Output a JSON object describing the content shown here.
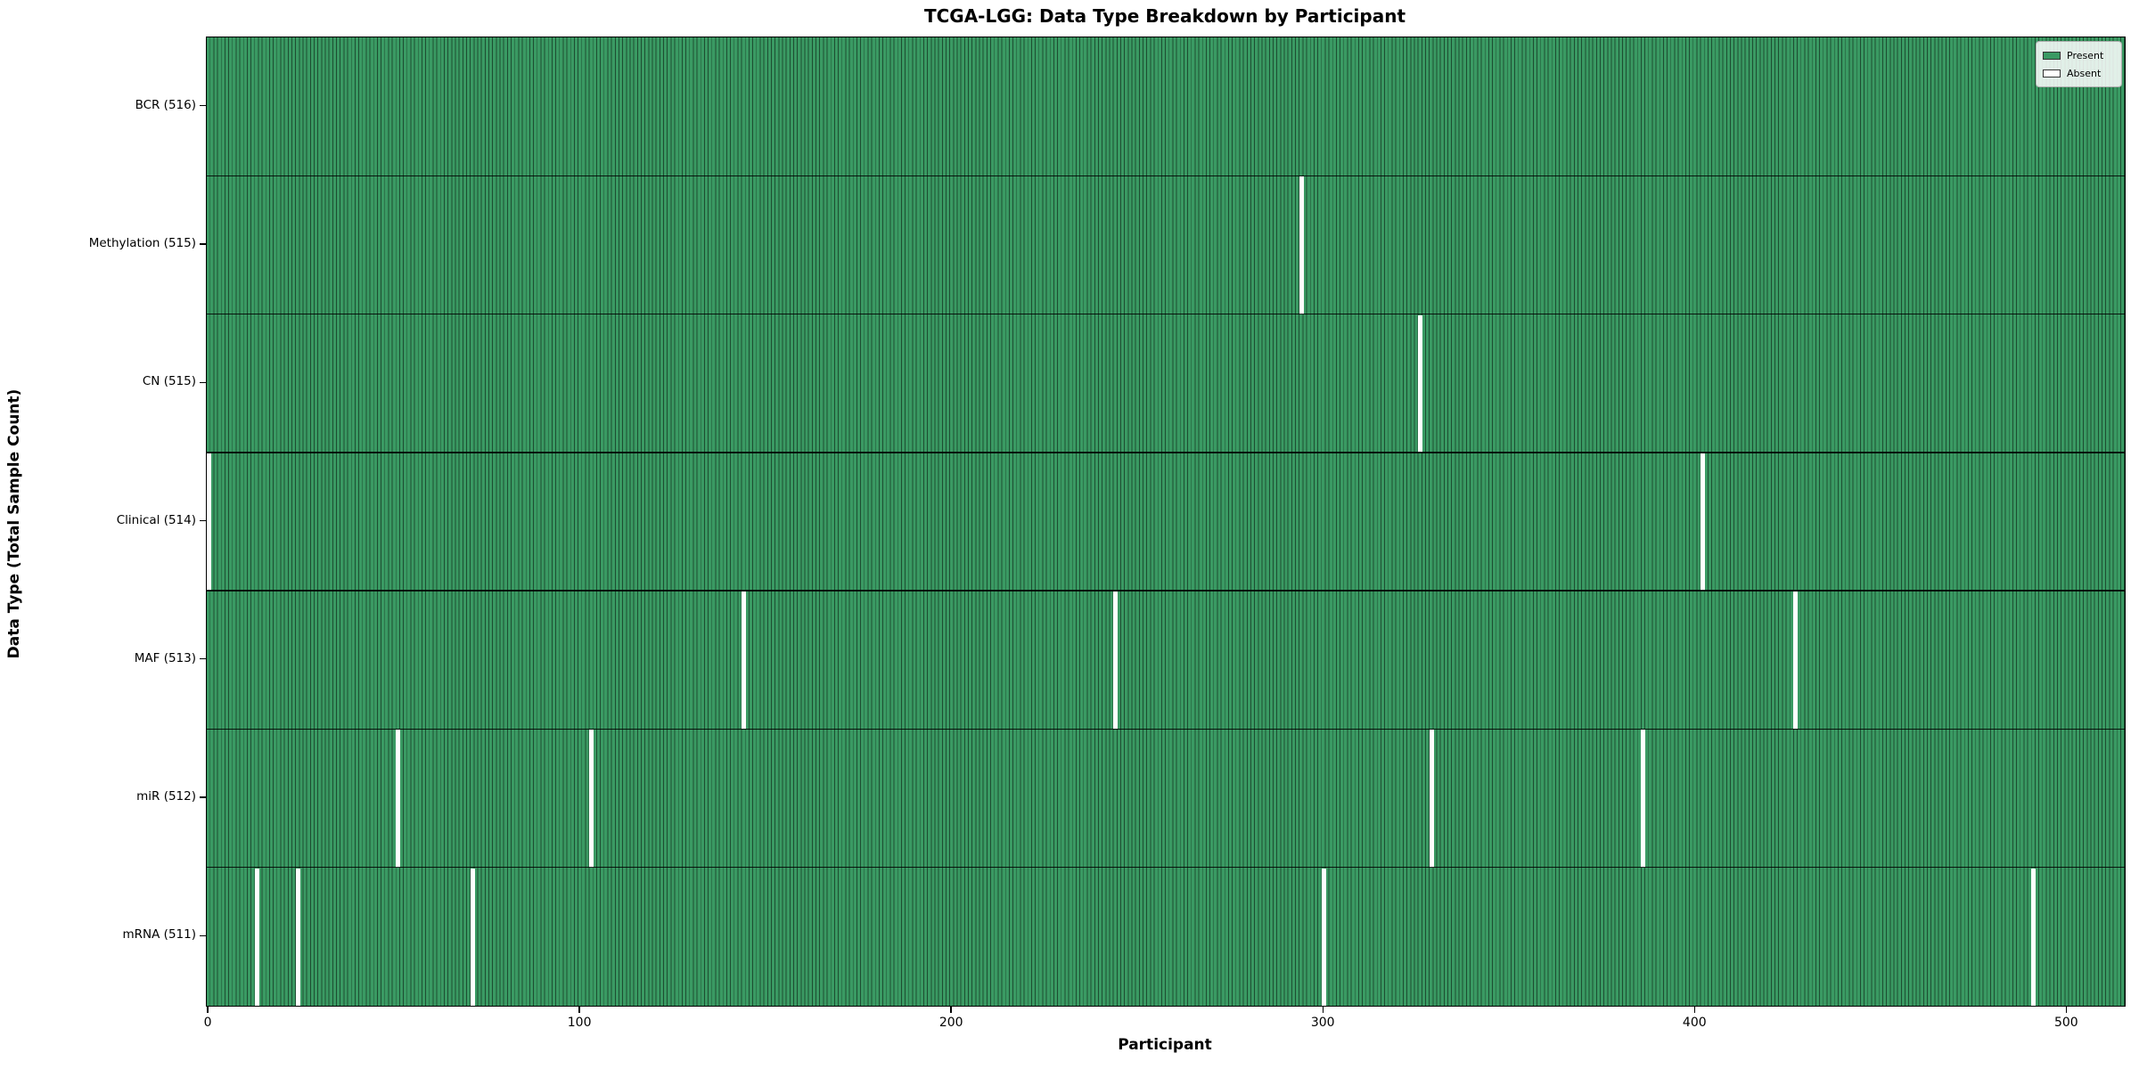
{
  "chart_data": {
    "type": "heatmap",
    "title": "TCGA-LGG: Data Type Breakdown by Participant",
    "xlabel": "Participant",
    "ylabel": "Data Type (Total Sample Count)",
    "n_participants": 516,
    "x_ticks": [
      0,
      100,
      200,
      300,
      400,
      500
    ],
    "xlim": [
      0,
      516
    ],
    "grid": false,
    "legend_position": "upper right",
    "legend": [
      {
        "label": "Present",
        "color": "#3a9a63"
      },
      {
        "label": "Absent",
        "color": "#ffffff"
      }
    ],
    "colors": {
      "present_fill": "#3a9a63",
      "bar_edge": "rgba(0,0,0,0.5)",
      "absent_fill": "#ffffff",
      "row_separator": "rgba(0,0,0,0.85)"
    },
    "rows": [
      {
        "label": "BCR (516)",
        "data_type": "BCR",
        "total_samples": 516,
        "absent_participants": []
      },
      {
        "label": "Methylation (515)",
        "data_type": "Methylation",
        "total_samples": 515,
        "absent_participants": [
          294
        ]
      },
      {
        "label": "CN (515)",
        "data_type": "CN",
        "total_samples": 515,
        "absent_participants": [
          326
        ]
      },
      {
        "label": "Clinical (514)",
        "data_type": "Clinical",
        "total_samples": 514,
        "absent_participants": [
          0,
          402
        ]
      },
      {
        "label": "MAF (513)",
        "data_type": "MAF",
        "total_samples": 513,
        "absent_participants": [
          144,
          244,
          427
        ]
      },
      {
        "label": "miR (512)",
        "data_type": "miR",
        "total_samples": 512,
        "absent_participants": [
          51,
          103,
          329,
          386
        ]
      },
      {
        "label": "mRNA (511)",
        "data_type": "mRNA",
        "total_samples": 511,
        "absent_participants": [
          13,
          24,
          71,
          300,
          491
        ]
      }
    ]
  }
}
